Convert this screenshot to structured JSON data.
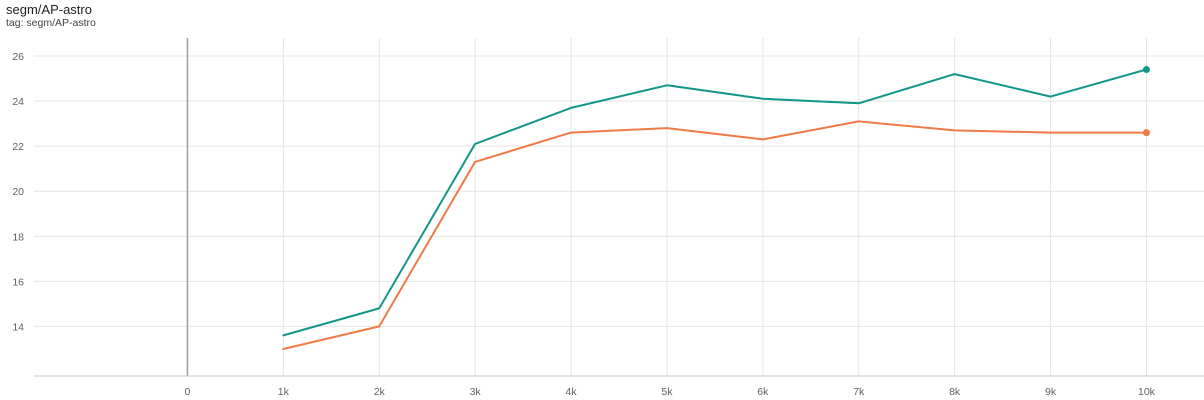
{
  "card": {
    "title": "segm/AP-astro",
    "tag": "tag: segm/AP-astro"
  },
  "chart_data": {
    "type": "line",
    "title": "segm/AP-astro",
    "xlabel": "",
    "ylabel": "",
    "xlim": [
      -1600,
      10600
    ],
    "ylim": [
      11.8,
      26.8
    ],
    "x_ticks": [
      0,
      1000,
      2000,
      3000,
      4000,
      5000,
      6000,
      7000,
      8000,
      9000,
      10000
    ],
    "x_tick_labels": [
      "0",
      "1k",
      "2k",
      "3k",
      "4k",
      "5k",
      "6k",
      "7k",
      "8k",
      "9k",
      "10k"
    ],
    "y_ticks": [
      14,
      16,
      18,
      20,
      22,
      24,
      26
    ],
    "y_tick_labels": [
      "14",
      "16",
      "18",
      "20",
      "22",
      "24",
      "26"
    ],
    "grid": true,
    "series": [
      {
        "color": "#12968a",
        "x": [
          1000,
          2000,
          3000,
          4000,
          5000,
          6000,
          7000,
          8000,
          9000,
          10000
        ],
        "y": [
          13.6,
          14.8,
          22.1,
          23.7,
          24.7,
          24.1,
          23.9,
          25.2,
          24.2,
          25.4
        ]
      },
      {
        "color": "#f07a45",
        "x": [
          1000,
          2000,
          3000,
          4000,
          5000,
          6000,
          7000,
          8000,
          9000,
          10000
        ],
        "y": [
          13.0,
          14.0,
          21.3,
          22.6,
          22.8,
          22.3,
          23.1,
          22.7,
          22.6,
          22.6
        ]
      }
    ]
  }
}
